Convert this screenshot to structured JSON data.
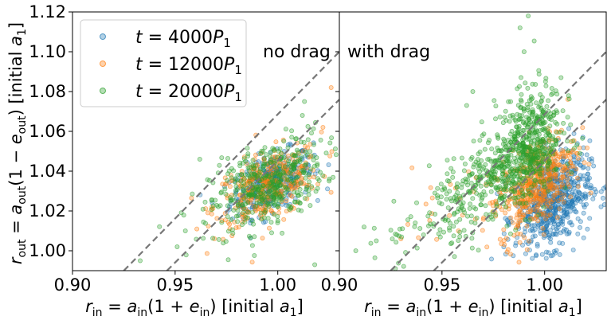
{
  "chart_data": [
    {
      "type": "scatter",
      "panel": "left",
      "annotation": "no drag",
      "xlabel": "r_in = a_in(1 + e_in)  [initial a_1]",
      "ylabel": "r_out = a_out(1 − e_out)  [initial a_1]",
      "xlim": [
        0.9,
        1.03
      ],
      "ylim": [
        0.99,
        1.12
      ],
      "xticks": [
        "0.90",
        "0.95",
        "1.00"
      ],
      "yticks": [
        "1.00",
        "1.02",
        "1.04",
        "1.06",
        "1.08",
        "1.10",
        "1.12"
      ],
      "dashed_lines": [
        {
          "x": [
            0.925,
            1.03
          ],
          "y": [
            0.99,
            1.1
          ]
        },
        {
          "x": [
            0.946,
            1.03
          ],
          "y": [
            0.99,
            1.076
          ]
        }
      ],
      "series": [
        {
          "name": "t = 4000 P1",
          "color": "#1f77b4",
          "clusters": [
            {
              "cx": 0.997,
              "cy": 1.034,
              "sx": 0.01,
              "sy": 0.008,
              "n": 320,
              "rho": 0.5
            }
          ]
        },
        {
          "name": "t = 12000 P1",
          "color": "#ff7f0e",
          "clusters": [
            {
              "cx": 0.995,
              "cy": 1.032,
              "sx": 0.013,
              "sy": 0.01,
              "n": 340,
              "rho": 0.5
            }
          ]
        },
        {
          "name": "t = 20000 P1",
          "color": "#2ca02c",
          "clusters": [
            {
              "cx": 0.995,
              "cy": 1.033,
              "sx": 0.014,
              "sy": 0.012,
              "n": 420,
              "rho": 0.5
            }
          ]
        }
      ],
      "outliers": [
        {
          "s": 2,
          "x": 0.962,
          "y": 1.046
        },
        {
          "s": 2,
          "x": 0.951,
          "y": 1.002
        },
        {
          "s": 2,
          "x": 0.933,
          "y": 0.995
        },
        {
          "s": 2,
          "x": 1.013,
          "y": 1.075
        },
        {
          "s": 2,
          "x": 1.012,
          "y": 1.068
        },
        {
          "s": 2,
          "x": 1.018,
          "y": 0.993
        },
        {
          "s": 2,
          "x": 0.973,
          "y": 1.083
        },
        {
          "s": 1,
          "x": 1.026,
          "y": 1.082
        },
        {
          "s": 1,
          "x": 1.022,
          "y": 1.062
        },
        {
          "s": 2,
          "x": 0.955,
          "y": 1.01
        }
      ]
    },
    {
      "type": "scatter",
      "panel": "right",
      "annotation": "with drag",
      "xlabel": "r_in = a_in(1 + e_in)  [initial a_1]",
      "ylabel": "",
      "xlim": [
        0.9,
        1.03
      ],
      "ylim": [
        0.99,
        1.12
      ],
      "xticks": [
        "0.90",
        "0.95",
        "1.00"
      ],
      "yticks": [],
      "dashed_lines": [
        {
          "x": [
            0.925,
            1.03
          ],
          "y": [
            0.99,
            1.1
          ]
        },
        {
          "x": [
            0.946,
            1.03
          ],
          "y": [
            0.99,
            1.076
          ]
        }
      ],
      "series": [
        {
          "name": "t = 4000 P1",
          "color": "#1f77b4",
          "clusters": [
            {
              "cx": 1.004,
              "cy": 1.025,
              "sx": 0.009,
              "sy": 0.012,
              "n": 600,
              "rho": 0.3
            }
          ]
        },
        {
          "name": "t = 12000 P1",
          "color": "#ff7f0e",
          "clusters": [
            {
              "cx": 0.997,
              "cy": 1.035,
              "sx": 0.009,
              "sy": 0.013,
              "n": 420,
              "rho": 0.5
            },
            {
              "cx": 0.975,
              "cy": 1.025,
              "sx": 0.02,
              "sy": 0.01,
              "n": 60,
              "rho": 0.6
            }
          ]
        },
        {
          "name": "t = 20000 P1",
          "color": "#2ca02c",
          "clusters": [
            {
              "cx": 0.992,
              "cy": 1.056,
              "sx": 0.008,
              "sy": 0.014,
              "n": 420,
              "rho": 0.3
            },
            {
              "cx": 0.976,
              "cy": 1.036,
              "sx": 0.016,
              "sy": 0.012,
              "n": 330,
              "rho": 0.6
            },
            {
              "cx": 0.95,
              "cy": 1.012,
              "sx": 0.022,
              "sy": 0.012,
              "n": 60,
              "rho": 0.6
            }
          ]
        }
      ],
      "outliers": [
        {
          "s": 2,
          "x": 0.908,
          "y": 1.0
        },
        {
          "s": 2,
          "x": 0.918,
          "y": 1.005
        },
        {
          "s": 2,
          "x": 0.928,
          "y": 1.008
        },
        {
          "s": 2,
          "x": 0.937,
          "y": 1.014
        },
        {
          "s": 2,
          "x": 0.988,
          "y": 1.112
        },
        {
          "s": 2,
          "x": 0.992,
          "y": 1.118
        },
        {
          "s": 2,
          "x": 0.99,
          "y": 1.1
        },
        {
          "s": 2,
          "x": 0.962,
          "y": 1.073
        },
        {
          "s": 2,
          "x": 0.965,
          "y": 1.08
        },
        {
          "s": 2,
          "x": 1.008,
          "y": 1.087
        },
        {
          "s": 1,
          "x": 0.93,
          "y": 1.006
        },
        {
          "s": 1,
          "x": 0.958,
          "y": 1.01
        }
      ]
    }
  ],
  "legend": {
    "placement": "upper-left of left panel",
    "entries": [
      {
        "label": "t = 4000P",
        "sub": "1",
        "color": "#1f77b4"
      },
      {
        "label": "t = 12000P",
        "sub": "1",
        "color": "#ff7f0e"
      },
      {
        "label": "t = 20000P",
        "sub": "1",
        "color": "#2ca02c"
      }
    ]
  },
  "colors": {
    "dashed": "#777777",
    "axes": "#000000"
  }
}
